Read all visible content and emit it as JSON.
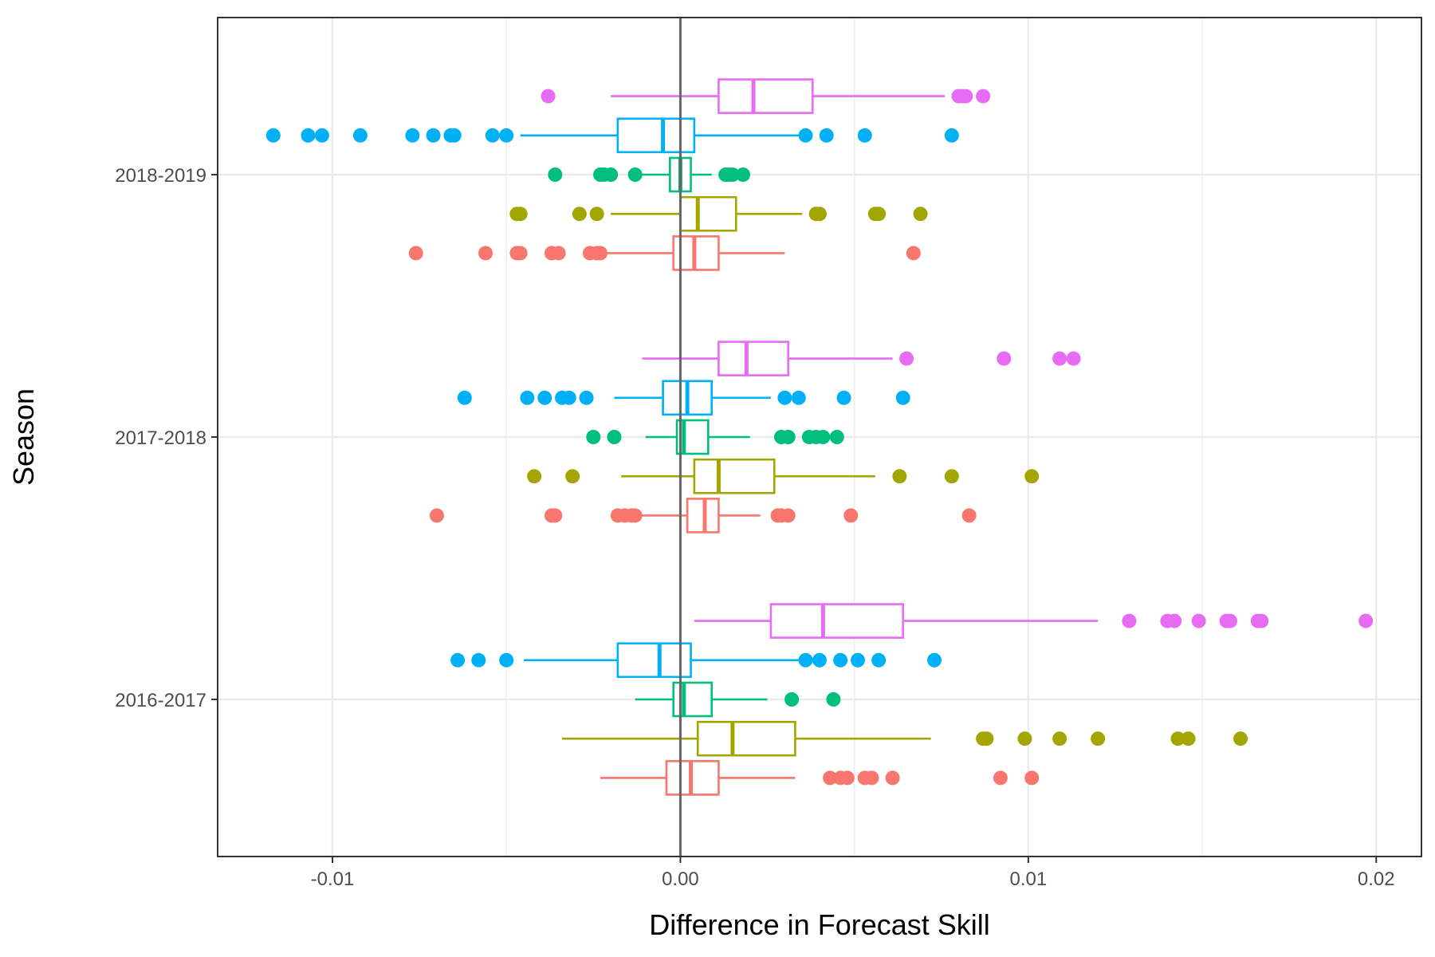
{
  "chart_data": {
    "type": "boxplot",
    "orientation": "horizontal",
    "xlabel": "Difference in Forecast Skill",
    "ylabel": "Season",
    "xlim": [
      -0.0133,
      0.0213
    ],
    "x_ticks": [
      -0.01,
      0.0,
      0.01,
      0.02
    ],
    "x_tick_labels": [
      "-0.01",
      "0.00",
      "0.01",
      "0.02"
    ],
    "reference_line_x": 0.0,
    "grid": true,
    "legend": "none",
    "categories": [
      "2016-2017",
      "2017-2018",
      "2018-2019"
    ],
    "series_colors": [
      "#F8766D",
      "#A3A500",
      "#00BF7D",
      "#00B0F6",
      "#E76BF3"
    ],
    "groups": [
      {
        "category": "2016-2017",
        "boxes": [
          {
            "series": 0,
            "whisker_low": -0.0023,
            "q1": -0.0004,
            "median": 0.0003,
            "q3": 0.0011,
            "whisker_high": 0.0033,
            "outliers": [
              0.0043,
              0.0046,
              0.0048,
              0.0053,
              0.0055,
              0.0061,
              0.0092,
              0.0101
            ]
          },
          {
            "series": 1,
            "whisker_low": -0.0034,
            "q1": 0.0005,
            "median": 0.0015,
            "q3": 0.0033,
            "whisker_high": 0.0072,
            "outliers": [
              0.0087,
              0.0088,
              0.0099,
              0.0109,
              0.012,
              0.0143,
              0.0146,
              0.0161
            ]
          },
          {
            "series": 2,
            "whisker_low": -0.0013,
            "q1": -0.0002,
            "median": 0.0001,
            "q3": 0.0009,
            "whisker_high": 0.0025,
            "outliers": [
              0.0032,
              0.0044
            ]
          },
          {
            "series": 3,
            "whisker_low": -0.0045,
            "q1": -0.0018,
            "median": -0.0006,
            "q3": 0.0003,
            "whisker_high": 0.0036,
            "outliers": [
              -0.0064,
              -0.0058,
              -0.005,
              0.0036,
              0.004,
              0.0046,
              0.0051,
              0.0057,
              0.0073
            ]
          },
          {
            "series": 4,
            "whisker_low": 0.0004,
            "q1": 0.0026,
            "median": 0.0041,
            "q3": 0.0064,
            "whisker_high": 0.012,
            "outliers": [
              0.0129,
              0.014,
              0.0142,
              0.0149,
              0.0157,
              0.0158,
              0.0166,
              0.0167,
              0.0197
            ]
          }
        ]
      },
      {
        "category": "2017-2018",
        "boxes": [
          {
            "series": 0,
            "whisker_low": -0.0018,
            "q1": 0.0002,
            "median": 0.0007,
            "q3": 0.0011,
            "whisker_high": 0.0023,
            "outliers": [
              -0.007,
              -0.0037,
              -0.0036,
              -0.0018,
              -0.0016,
              -0.0014,
              -0.0013,
              0.0028,
              0.0029,
              0.0031,
              0.0049,
              0.0083
            ]
          },
          {
            "series": 1,
            "whisker_low": -0.0017,
            "q1": 0.0004,
            "median": 0.0011,
            "q3": 0.0027,
            "whisker_high": 0.0056,
            "outliers": [
              -0.0042,
              -0.0031,
              0.0063,
              0.0078,
              0.0101
            ]
          },
          {
            "series": 2,
            "whisker_low": -0.001,
            "q1": -0.0001,
            "median": 0.0001,
            "q3": 0.0008,
            "whisker_high": 0.002,
            "outliers": [
              -0.0025,
              -0.0019,
              0.0029,
              0.0031,
              0.0037,
              0.0039,
              0.0041,
              0.0045
            ]
          },
          {
            "series": 3,
            "whisker_low": -0.0019,
            "q1": -0.0005,
            "median": 0.0002,
            "q3": 0.0009,
            "whisker_high": 0.0026,
            "outliers": [
              -0.0062,
              -0.0044,
              -0.0039,
              -0.0034,
              -0.0032,
              -0.0027,
              0.003,
              0.0034,
              0.0047,
              0.0064
            ]
          },
          {
            "series": 4,
            "whisker_low": -0.0011,
            "q1": 0.0011,
            "median": 0.0019,
            "q3": 0.0031,
            "whisker_high": 0.0061,
            "outliers": [
              0.0065,
              0.0093,
              0.0109,
              0.0113
            ]
          }
        ]
      },
      {
        "category": "2018-2019",
        "boxes": [
          {
            "series": 0,
            "whisker_low": -0.0023,
            "q1": -0.0002,
            "median": 0.0004,
            "q3": 0.0011,
            "whisker_high": 0.003,
            "outliers": [
              -0.0076,
              -0.0056,
              -0.0047,
              -0.0046,
              -0.0037,
              -0.0035,
              -0.0026,
              -0.0024,
              -0.0023,
              0.0067
            ]
          },
          {
            "series": 1,
            "whisker_low": -0.002,
            "q1": 0.0,
            "median": 0.0005,
            "q3": 0.0016,
            "whisker_high": 0.0035,
            "outliers": [
              -0.0047,
              -0.0046,
              -0.0029,
              -0.0024,
              0.0039,
              0.004,
              0.0056,
              0.0057,
              0.0069
            ]
          },
          {
            "series": 2,
            "whisker_low": -0.0011,
            "q1": -0.0003,
            "median": 0.0,
            "q3": 0.0003,
            "whisker_high": 0.0009,
            "outliers": [
              -0.0036,
              -0.0023,
              -0.0022,
              -0.002,
              -0.0013,
              0.0013,
              0.0014,
              0.0015,
              0.0018
            ]
          },
          {
            "series": 3,
            "whisker_low": -0.0046,
            "q1": -0.0018,
            "median": -0.0005,
            "q3": 0.0004,
            "whisker_high": 0.0036,
            "outliers": [
              -0.0117,
              -0.0107,
              -0.0103,
              -0.0092,
              -0.0077,
              -0.0071,
              -0.0066,
              -0.0065,
              -0.0054,
              -0.005,
              0.0036,
              0.0042,
              0.0053,
              0.0078
            ]
          },
          {
            "series": 4,
            "whisker_low": -0.002,
            "q1": 0.0011,
            "median": 0.0021,
            "q3": 0.0038,
            "whisker_high": 0.0076,
            "outliers": [
              -0.0038,
              0.008,
              0.0081,
              0.0082,
              0.0087
            ]
          }
        ]
      }
    ]
  }
}
